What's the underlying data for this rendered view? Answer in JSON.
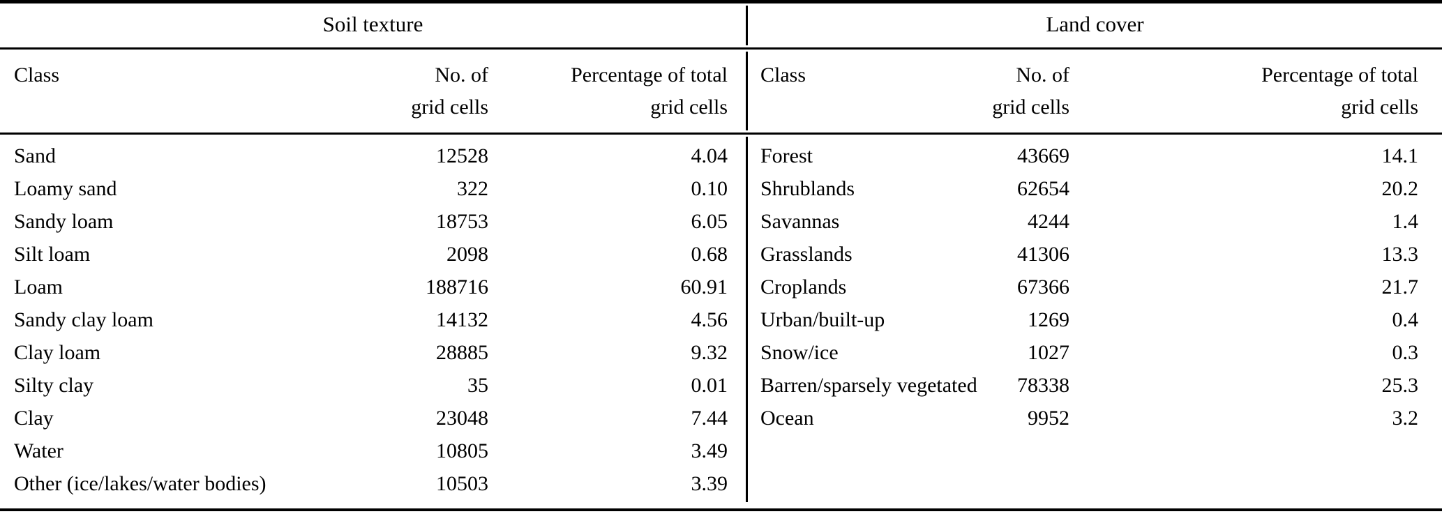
{
  "colors": {
    "text": "#000000",
    "background": "#ffffff",
    "rule": "#000000"
  },
  "table": {
    "sections": [
      {
        "title": "Soil texture",
        "columns": {
          "class": "Class",
          "count_line1": "No. of",
          "count_line2": "grid cells",
          "pct_line1": "Percentage of total",
          "pct_line2": "grid cells"
        },
        "rows": [
          {
            "class": "Sand",
            "count": "12528",
            "pct": "4.04"
          },
          {
            "class": "Loamy sand",
            "count": "322",
            "pct": "0.10"
          },
          {
            "class": "Sandy loam",
            "count": "18753",
            "pct": "6.05"
          },
          {
            "class": "Silt loam",
            "count": "2098",
            "pct": "0.68"
          },
          {
            "class": "Loam",
            "count": "188716",
            "pct": "60.91"
          },
          {
            "class": "Sandy clay loam",
            "count": "14132",
            "pct": "4.56"
          },
          {
            "class": "Clay loam",
            "count": "28885",
            "pct": "9.32"
          },
          {
            "class": "Silty clay",
            "count": "35",
            "pct": "0.01"
          },
          {
            "class": "Clay",
            "count": "23048",
            "pct": "7.44"
          },
          {
            "class": "Water",
            "count": "10805",
            "pct": "3.49"
          },
          {
            "class": "Other (ice/lakes/water bodies)",
            "count": "10503",
            "pct": "3.39"
          }
        ]
      },
      {
        "title": "Land cover",
        "columns": {
          "class": "Class",
          "count_line1": "No. of",
          "count_line2": "grid cells",
          "pct_line1": "Percentage of total",
          "pct_line2": "grid cells"
        },
        "rows": [
          {
            "class": "Forest",
            "count": "43669",
            "pct": "14.1"
          },
          {
            "class": "Shrublands",
            "count": "62654",
            "pct": "20.2"
          },
          {
            "class": "Savannas",
            "count": "4244",
            "pct": "1.4"
          },
          {
            "class": "Grasslands",
            "count": "41306",
            "pct": "13.3"
          },
          {
            "class": "Croplands",
            "count": "67366",
            "pct": "21.7"
          },
          {
            "class": "Urban/built-up",
            "count": "1269",
            "pct": "0.4"
          },
          {
            "class": "Snow/ice",
            "count": "1027",
            "pct": "0.3"
          },
          {
            "class": "Barren/sparsely vegetated",
            "count": "78338",
            "pct": "25.3"
          },
          {
            "class": "Ocean",
            "count": "9952",
            "pct": "3.2"
          }
        ]
      }
    ]
  }
}
